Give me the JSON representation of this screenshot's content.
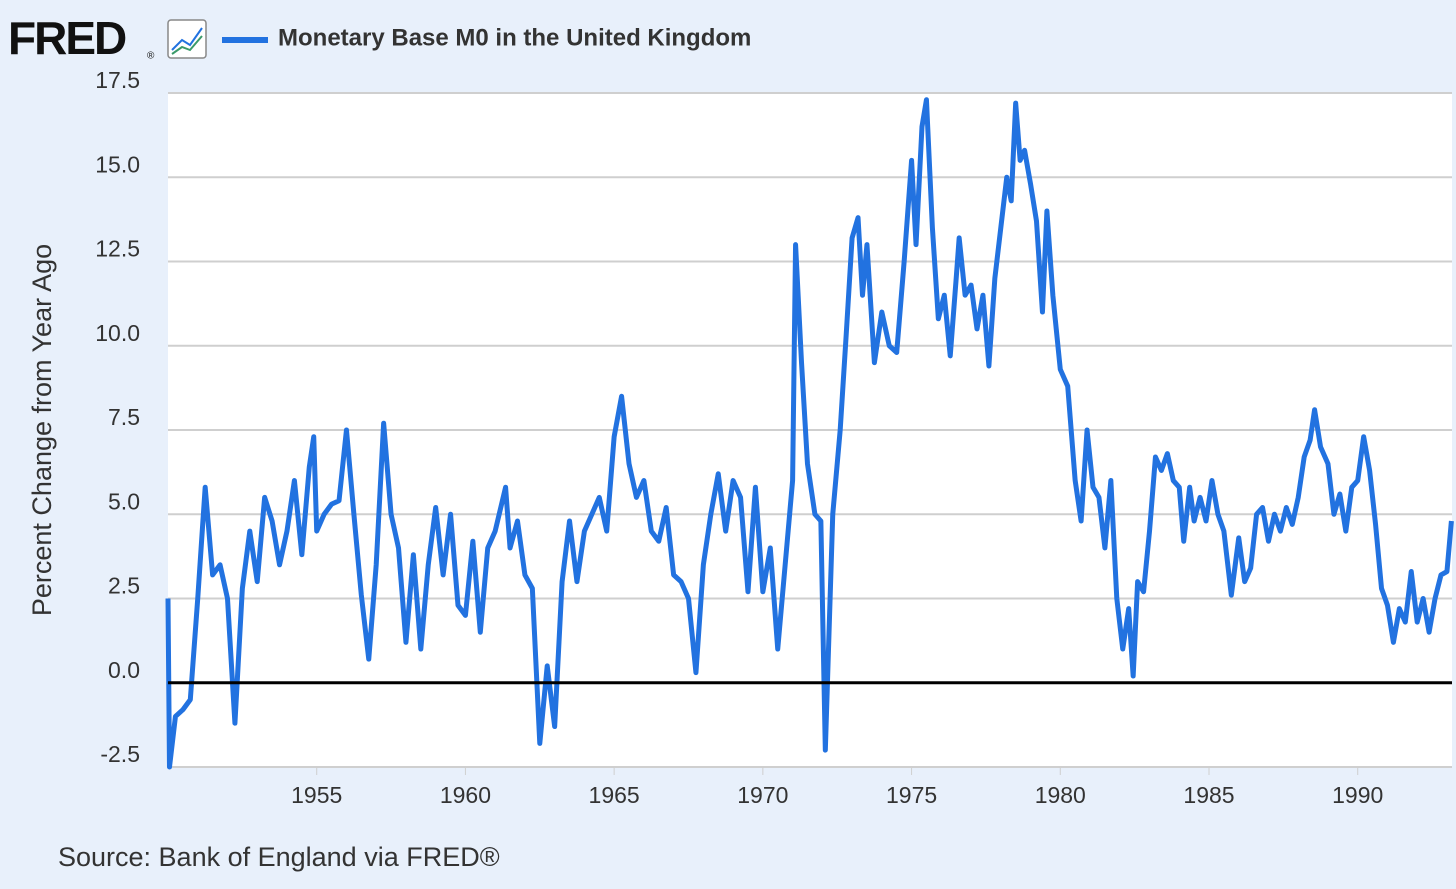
{
  "chart_data": {
    "type": "line",
    "logo": "FRED",
    "logo_mark": "®",
    "title": "Monetary Base M0 in the United Kingdom",
    "ylabel": "Percent Change from Year Ago",
    "source": "Source: Bank of England via FRED®",
    "x": [
      1950.0,
      1950.05,
      1950.25,
      1950.5,
      1950.75,
      1951.0,
      1951.25,
      1951.5,
      1951.75,
      1952.0,
      1952.25,
      1952.5,
      1952.75,
      1953.0,
      1953.25,
      1953.5,
      1953.75,
      1954.0,
      1954.25,
      1954.5,
      1954.75,
      1954.9,
      1955.0,
      1955.25,
      1955.5,
      1955.75,
      1956.0,
      1956.25,
      1956.5,
      1956.75,
      1957.0,
      1957.25,
      1957.5,
      1957.75,
      1958.0,
      1958.25,
      1958.5,
      1958.75,
      1959.0,
      1959.25,
      1959.5,
      1959.75,
      1960.0,
      1960.25,
      1960.5,
      1960.75,
      1961.0,
      1961.35,
      1961.5,
      1961.75,
      1962.0,
      1962.25,
      1962.5,
      1962.75,
      1963.0,
      1963.25,
      1963.5,
      1963.75,
      1964.0,
      1964.25,
      1964.5,
      1964.75,
      1965.0,
      1965.25,
      1965.5,
      1965.75,
      1966.0,
      1966.25,
      1966.5,
      1966.75,
      1967.0,
      1967.25,
      1967.5,
      1967.75,
      1968.0,
      1968.25,
      1968.5,
      1968.75,
      1969.0,
      1969.25,
      1969.5,
      1969.75,
      1970.0,
      1970.25,
      1970.5,
      1970.75,
      1971.0,
      1971.1,
      1971.3,
      1971.5,
      1971.75,
      1971.95,
      1972.1,
      1972.35,
      1972.6,
      1972.8,
      1973.0,
      1973.2,
      1973.35,
      1973.5,
      1973.75,
      1974.0,
      1974.25,
      1974.5,
      1974.75,
      1975.0,
      1975.15,
      1975.35,
      1975.5,
      1975.7,
      1975.9,
      1976.1,
      1976.3,
      1976.5,
      1976.6,
      1976.8,
      1977.0,
      1977.2,
      1977.4,
      1977.6,
      1977.8,
      1978.0,
      1978.2,
      1978.35,
      1978.5,
      1978.65,
      1978.8,
      1979.0,
      1979.2,
      1979.4,
      1979.55,
      1979.75,
      1980.0,
      1980.25,
      1980.5,
      1980.7,
      1980.9,
      1981.1,
      1981.3,
      1981.5,
      1981.7,
      1981.9,
      1982.1,
      1982.3,
      1982.45,
      1982.6,
      1982.8,
      1983.0,
      1983.2,
      1983.4,
      1983.6,
      1983.8,
      1984.0,
      1984.15,
      1984.35,
      1984.5,
      1984.7,
      1984.9,
      1985.1,
      1985.3,
      1985.5,
      1985.75,
      1986.0,
      1986.2,
      1986.4,
      1986.6,
      1986.8,
      1987.0,
      1987.2,
      1987.4,
      1987.6,
      1987.8,
      1988.0,
      1988.2,
      1988.4,
      1988.55,
      1988.75,
      1989.0,
      1989.2,
      1989.4,
      1989.6,
      1989.8,
      1990.0,
      1990.2,
      1990.4,
      1990.6,
      1990.8,
      1991.0,
      1991.2,
      1991.4,
      1991.6,
      1991.8,
      1992.0,
      1992.2,
      1992.4,
      1992.6,
      1992.8,
      1993.0,
      1993.15
    ],
    "series": [
      {
        "name": "Monetary Base M0 in the United Kingdom",
        "color": "#2272e0",
        "values": [
          2.5,
          -2.5,
          -1,
          -0.8,
          -0.5,
          2.5,
          5.8,
          3.2,
          3.5,
          2.5,
          -1.2,
          2.8,
          4.5,
          3.0,
          5.5,
          4.8,
          3.5,
          4.5,
          6.0,
          3.8,
          6.4,
          7.3,
          4.5,
          5.0,
          5.3,
          5.4,
          7.5,
          5.0,
          2.6,
          0.7,
          3.5,
          7.7,
          5.0,
          4.0,
          1.2,
          3.8,
          1.0,
          3.5,
          5.2,
          3.2,
          5.0,
          2.3,
          2.0,
          4.2,
          1.5,
          4.0,
          4.5,
          5.8,
          4.0,
          4.8,
          3.2,
          2.8,
          -1.8,
          0.5,
          -1.3,
          3.0,
          4.8,
          3.0,
          4.5,
          5.0,
          5.5,
          4.5,
          7.3,
          8.5,
          6.5,
          5.5,
          6.0,
          4.5,
          4.2,
          5.2,
          3.2,
          3.0,
          2.5,
          0.3,
          3.5,
          5.0,
          6.2,
          4.5,
          6.0,
          5.5,
          2.7,
          5.8,
          2.7,
          4.0,
          1.0,
          3.5,
          6.0,
          13.0,
          9.5,
          6.5,
          5.0,
          4.8,
          -2.0,
          5.0,
          7.5,
          10.3,
          13.2,
          13.8,
          11.5,
          13.0,
          9.5,
          11.0,
          10.0,
          9.8,
          12.5,
          15.5,
          13.0,
          16.5,
          17.3,
          13.5,
          10.8,
          11.5,
          9.7,
          12.0,
          13.2,
          11.5,
          11.8,
          10.5,
          11.5,
          9.4,
          12.0,
          13.5,
          15.0,
          14.3,
          17.2,
          15.5,
          15.8,
          14.8,
          13.7,
          11.0,
          14.0,
          11.5,
          9.3,
          8.8,
          6.0,
          4.8,
          7.5,
          5.8,
          5.5,
          4.0,
          6.0,
          2.5,
          1.0,
          2.2,
          0.2,
          3.0,
          2.7,
          4.5,
          6.7,
          6.3,
          6.8,
          6.0,
          5.8,
          4.2,
          5.8,
          4.8,
          5.5,
          4.8,
          6.0,
          5.0,
          4.5,
          2.6,
          4.3,
          3.0,
          3.4,
          5.0,
          5.2,
          4.2,
          5.0,
          4.5,
          5.2,
          4.7,
          5.5,
          6.7,
          7.2,
          8.1,
          7.0,
          6.5,
          5.0,
          5.6,
          4.5,
          5.8,
          6.0,
          7.3,
          6.3,
          4.7,
          2.8,
          2.3,
          1.2,
          2.2,
          1.8,
          3.3,
          1.8,
          2.5,
          1.5,
          2.5,
          3.2,
          3.3,
          4.8
        ]
      }
    ],
    "xlim": [
      1950,
      1993.17
    ],
    "xticks": [
      1955,
      1960,
      1965,
      1970,
      1975,
      1980,
      1985,
      1990
    ],
    "ylim": [
      -2.5,
      17.5
    ],
    "yticks": [
      -2.5,
      {
        "value": 0,
        "label": "0.0"
      },
      2.5,
      {
        "value": 5,
        "label": "5.0"
      },
      7.5,
      {
        "value": 10,
        "label": "10.0"
      },
      12.5,
      {
        "value": 15,
        "label": "15.0"
      },
      17.5
    ],
    "grid": true
  }
}
